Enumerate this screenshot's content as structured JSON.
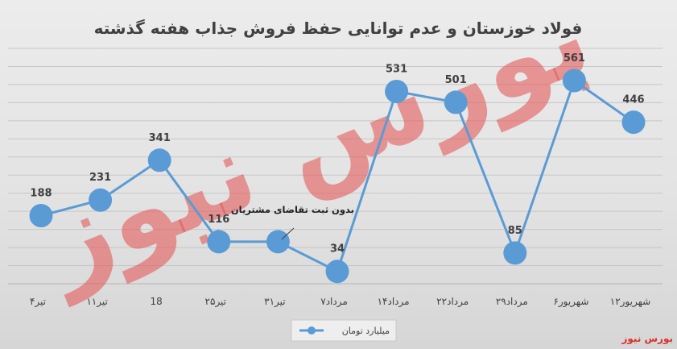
{
  "chart_data": {
    "type": "line",
    "title": "فولاد خوزستان و عدم توانایی حفظ فروش جذاب هفته گذشته",
    "categories": [
      "۴تیر",
      "۱۱تیر",
      "18",
      "۲۵تیر",
      "۳۱تیر",
      "۷مرداد",
      "۱۴مرداد",
      "۲۲مرداد",
      "۲۹مرداد",
      "۶شهریور",
      "۱۲شهریور"
    ],
    "series": [
      {
        "name": "میلیارد تومان",
        "values": [
          188,
          231,
          341,
          116,
          116,
          34,
          531,
          501,
          85,
          561,
          446
        ]
      }
    ],
    "data_labels": [
      "188",
      "231",
      "341",
      "116",
      "",
      "34",
      "531",
      "501",
      "85",
      "561",
      "446"
    ],
    "annotation": "بدون ثبت تقاضای مشتریان",
    "ylim": [
      0,
      650
    ],
    "grid": true,
    "legend_position": "bottom",
    "colors": {
      "line": "#5b9bd5",
      "marker": "#5b9bd5",
      "grid": "#c6c6c6",
      "text": "#404040"
    }
  },
  "watermark": {
    "text": "بورس نیوز",
    "color": "#e25a5a"
  },
  "brand": {
    "text": "بورس نیوز",
    "color": "#d9302a"
  }
}
